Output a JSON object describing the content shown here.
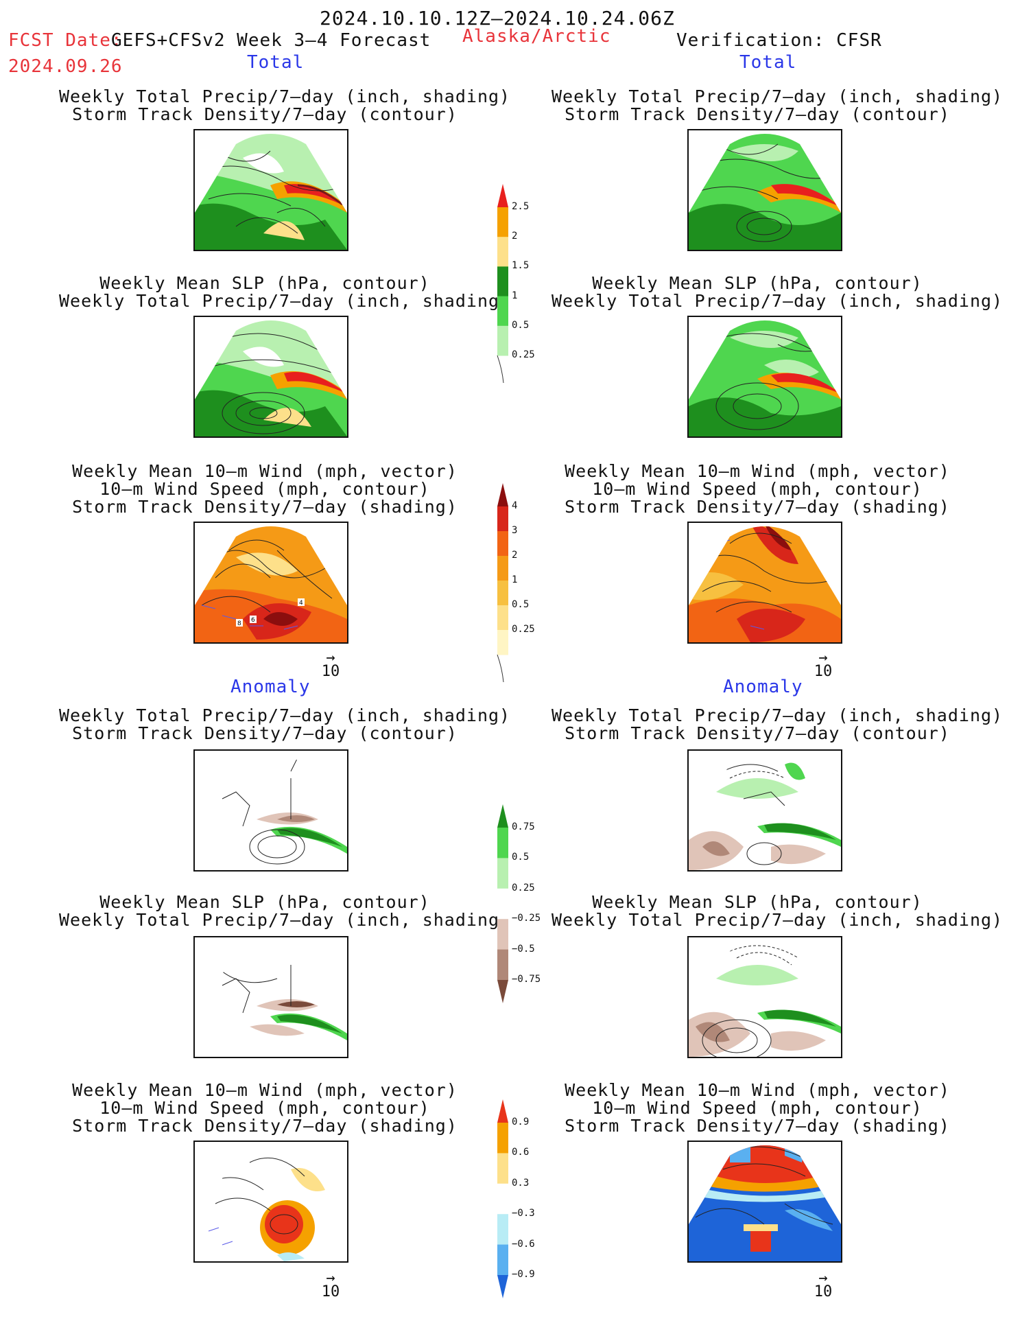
{
  "header": {
    "date_range": "2024.10.10.12Z–2024.10.24.06Z",
    "fcst_label": "FCST Date:",
    "model": "GEFS+CFSv2 Week 3–4 Forecast",
    "region": "Alaska/Arctic",
    "verification": "Verification: CFSR",
    "fcst_date": "2024.09.26"
  },
  "sections": {
    "total": "Total",
    "anomaly": "Anomaly"
  },
  "titles": {
    "precip_storm": [
      "Weekly Total Precip/7–day (inch, shading)",
      "Storm Track Density/7–day (contour)"
    ],
    "slp_precip": [
      "Weekly Mean SLP (hPa, contour)",
      "Weekly Total Precip/7–day (inch, shading)"
    ],
    "wind_storm": [
      "Weekly Mean 10–m Wind (mph, vector)",
      "10–m Wind Speed (mph, contour)",
      "Storm Track Density/7–day (shading)"
    ]
  },
  "vector_ref": {
    "arrow": "→",
    "value": "10"
  },
  "colorbars": {
    "precip_total": {
      "labels": [
        "2.5",
        "2",
        "1.5",
        "1",
        "0.5",
        "0.25"
      ],
      "colors": [
        "#e8201e",
        "#f5a100",
        "#fde08a",
        "#1e8f1e",
        "#4fd64f",
        "#b8f0b0"
      ]
    },
    "storm_total": {
      "labels": [
        "4",
        "3",
        "2",
        "1",
        "0.5",
        "0.25"
      ],
      "colors": [
        "#8b0e0e",
        "#d8261a",
        "#f26414",
        "#f59a16",
        "#f7c040",
        "#fde08a",
        "#fff5c4"
      ]
    },
    "precip_anom": {
      "labels": [
        "0.75",
        "0.5",
        "0.25",
        "−0.25",
        "−0.5",
        "−0.75"
      ],
      "colors": [
        "#1e8f1e",
        "#4fd64f",
        "#b8f0b0",
        "#ffffff",
        "#e0c4b8",
        "#b08878",
        "#7a4a3a"
      ]
    },
    "storm_anom": {
      "labels": [
        "0.9",
        "0.6",
        "0.3",
        "−0.3",
        "−0.6",
        "−0.9"
      ],
      "colors": [
        "#e8341a",
        "#f5a100",
        "#fde08a",
        "#ffffff",
        "#b8ecf5",
        "#5ab0f0",
        "#1e64d8"
      ]
    }
  },
  "colors": {
    "accent_red": "#e8343a",
    "accent_blue": "#2a37e8"
  }
}
